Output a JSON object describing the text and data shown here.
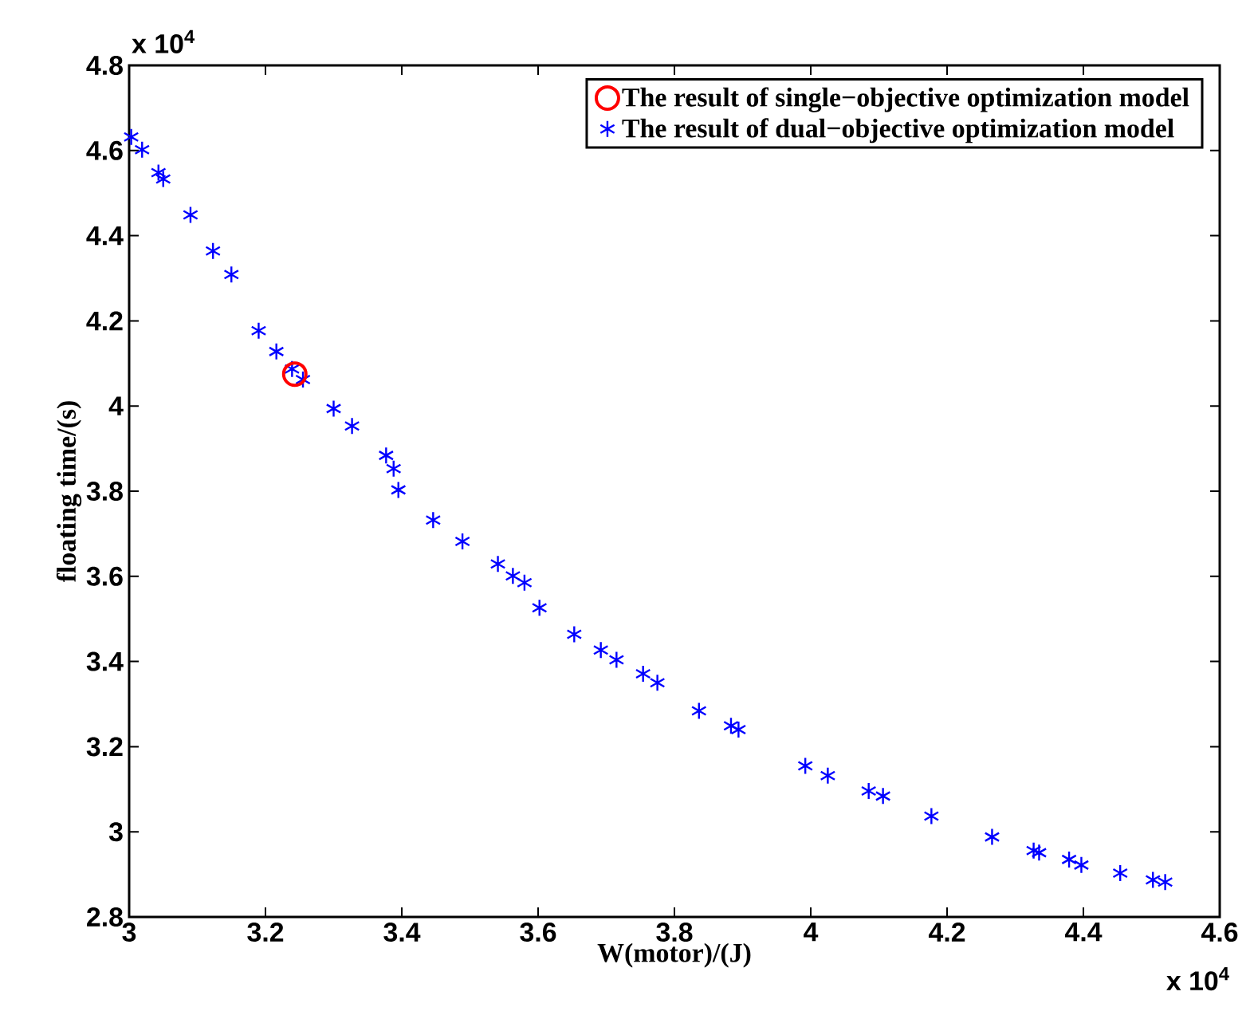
{
  "chart_data": {
    "type": "scatter",
    "xlabel": "W(motor)/(J)",
    "ylabel": "floating time/(s)",
    "xlim": [
      3,
      4.6
    ],
    "xticks": [
      3,
      3.2,
      3.4,
      3.6,
      3.8,
      4,
      4.2,
      4.4,
      4.6
    ],
    "ylim": [
      2.8,
      4.8
    ],
    "yticks": [
      2.8,
      3,
      3.2,
      3.4,
      3.6,
      3.8,
      4,
      4.2,
      4.4,
      4.6,
      4.8
    ],
    "grid": false,
    "legend": "top right",
    "annotations": [
      "x 10$^{4}$",
      "x 10$^{4}$"
    ],
    "series": [
      {
        "name": "The result of single−objective optimization model",
        "color": "#ff0000",
        "marker": "circle",
        "x": [
          3.243
        ],
        "values": [
          4.075
        ]
      },
      {
        "name": "The result of dual−objective optimization model",
        "color": "#0000ff",
        "marker": "cross",
        "x": [
          3.003,
          3.019,
          3.043,
          3.05,
          3.09,
          3.123,
          3.15,
          3.19,
          3.216,
          3.239,
          3.255,
          3.3,
          3.327,
          3.377,
          3.388,
          3.395,
          3.446,
          3.489,
          3.541,
          3.563,
          3.58,
          3.602,
          3.653,
          3.692,
          3.715,
          3.754,
          3.775,
          3.836,
          3.883,
          3.894,
          3.992,
          4.025,
          4.085,
          4.106,
          4.177,
          4.266,
          4.327,
          4.335,
          4.379,
          4.397,
          4.454,
          4.502,
          4.52
        ],
        "values": [
          4.632,
          4.602,
          4.548,
          4.533,
          4.449,
          4.364,
          4.309,
          4.177,
          4.128,
          4.087,
          4.062,
          3.994,
          3.953,
          3.884,
          3.853,
          3.803,
          3.732,
          3.682,
          3.629,
          3.601,
          3.585,
          3.526,
          3.464,
          3.427,
          3.404,
          3.371,
          3.35,
          3.284,
          3.249,
          3.24,
          3.155,
          3.132,
          3.096,
          3.084,
          3.037,
          2.988,
          2.956,
          2.951,
          2.935,
          2.922,
          2.903,
          2.887,
          2.882
        ]
      }
    ]
  }
}
